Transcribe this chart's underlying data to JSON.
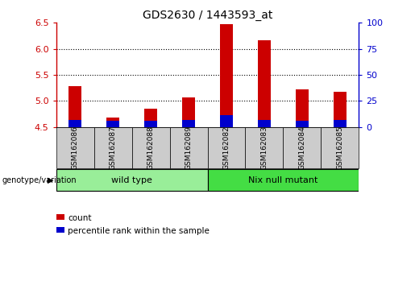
{
  "title": "GDS2630 / 1443593_at",
  "samples": [
    "GSM162086",
    "GSM162087",
    "GSM162088",
    "GSM162089",
    "GSM162082",
    "GSM162083",
    "GSM162084",
    "GSM162085"
  ],
  "count_values": [
    5.28,
    4.68,
    4.85,
    5.07,
    6.48,
    6.17,
    5.22,
    5.17
  ],
  "percentile_values": [
    4.63,
    4.62,
    4.62,
    4.63,
    4.73,
    4.63,
    4.62,
    4.63
  ],
  "bar_bottom": 4.5,
  "ylim_left": [
    4.5,
    6.5
  ],
  "ylim_right": [
    0,
    100
  ],
  "yticks_left": [
    4.5,
    5.0,
    5.5,
    6.0,
    6.5
  ],
  "yticks_right": [
    0,
    25,
    50,
    75,
    100
  ],
  "grid_lines": [
    5.0,
    5.5,
    6.0
  ],
  "bar_color_red": "#cc0000",
  "bar_color_blue": "#0000cc",
  "bar_width": 0.35,
  "groups": [
    {
      "label": "wild type",
      "indices": [
        0,
        1,
        2,
        3
      ],
      "color": "#99ee99"
    },
    {
      "label": "Nix null mutant",
      "indices": [
        4,
        5,
        6,
        7
      ],
      "color": "#44dd44"
    }
  ],
  "group_row_label": "genotype/variation",
  "legend_items": [
    {
      "label": "count",
      "color": "#cc0000"
    },
    {
      "label": "percentile rank within the sample",
      "color": "#0000cc"
    }
  ],
  "tick_area_color": "#cccccc",
  "left_tick_color": "#cc0000",
  "right_tick_color": "#0000cc",
  "title_fontsize": 10
}
